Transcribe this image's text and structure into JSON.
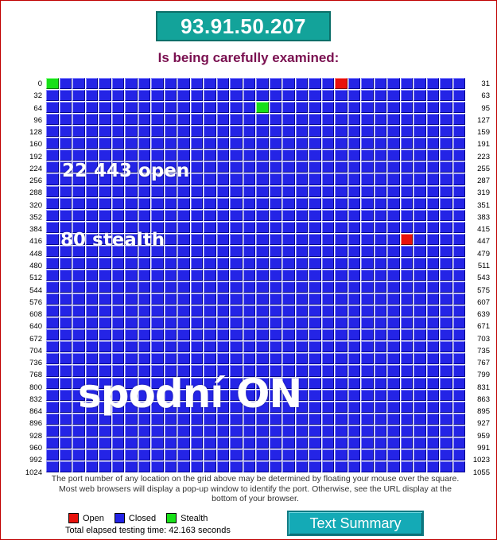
{
  "header": {
    "ip": "93.91.50.207",
    "subtitle": "Is being carefully examined:"
  },
  "grid": {
    "columns": 32,
    "rows": 33,
    "left_labels": [
      "0",
      "32",
      "64",
      "96",
      "128",
      "160",
      "192",
      "224",
      "256",
      "288",
      "320",
      "352",
      "384",
      "416",
      "448",
      "480",
      "512",
      "544",
      "576",
      "608",
      "640",
      "672",
      "704",
      "736",
      "768",
      "800",
      "832",
      "864",
      "896",
      "928",
      "960",
      "992",
      "1024"
    ],
    "right_labels": [
      "31",
      "63",
      "95",
      "127",
      "159",
      "191",
      "223",
      "255",
      "287",
      "319",
      "351",
      "383",
      "415",
      "447",
      "479",
      "511",
      "543",
      "575",
      "607",
      "639",
      "671",
      "703",
      "735",
      "767",
      "799",
      "831",
      "863",
      "895",
      "927",
      "959",
      "991",
      "1023",
      "1055"
    ],
    "open_ports": [
      22,
      443
    ],
    "stealth_ports": [
      0,
      80
    ],
    "colors": {
      "open": "#e8120c",
      "closed": "#2424e6",
      "stealth": "#18e018"
    }
  },
  "overlays": {
    "open_text": "22 443 open",
    "stealth_text": "80 stealth",
    "spodni_text": "spodní ON"
  },
  "footer": {
    "note": "The port number of any location on the grid above may be determined by floating your mouse over the square. Most web browsers will display a pop-up window to identify the port. Otherwise, see the URL display at the bottom of your browser.",
    "legend": {
      "open": "Open",
      "closed": "Closed",
      "stealth": "Stealth"
    },
    "elapsed": "Total elapsed testing time: 42.163 seconds",
    "summary_button": "Text Summary"
  }
}
